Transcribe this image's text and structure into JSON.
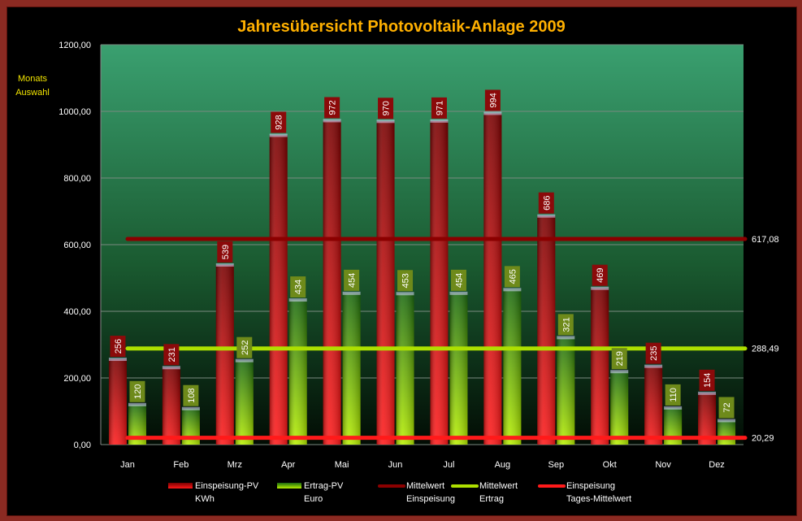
{
  "chart_data": {
    "type": "bar",
    "title": "Jahresübersicht Photovoltaik-Anlage  2009",
    "categories": [
      "Jan",
      "Feb",
      "Mrz",
      "Apr",
      "Mai",
      "Jun",
      "Jul",
      "Aug",
      "Sep",
      "Okt",
      "Nov",
      "Dez"
    ],
    "ylim": [
      0,
      1200
    ],
    "yticks": [
      "0,00",
      "200,00",
      "400,00",
      "600,00",
      "800,00",
      "1000,00",
      "1200,00"
    ],
    "grid": true,
    "legend_position": "bottom",
    "series": [
      {
        "key": "einspeisung",
        "name": "Einspeisung-PV KWh",
        "name_line1": "Einspeisung-PV",
        "name_line2": "KWh",
        "type": "bar",
        "values": [
          256,
          231,
          539,
          928,
          972,
          970,
          971,
          994,
          686,
          469,
          235,
          154
        ],
        "labels": [
          "256",
          "231",
          "539",
          "928",
          "972",
          "970",
          "971",
          "994",
          "686",
          "469",
          "235",
          "154"
        ]
      },
      {
        "key": "ertrag",
        "name": "Ertrag-PV Euro",
        "name_line1": "Ertrag-PV",
        "name_line2": "Euro",
        "type": "bar",
        "values": [
          120,
          108,
          252,
          434,
          454,
          453,
          454,
          465,
          321,
          219,
          110,
          72
        ],
        "labels": [
          "120",
          "108",
          "252",
          "434",
          "454",
          "453",
          "454",
          "465",
          "321",
          "219",
          "110",
          "72"
        ]
      },
      {
        "key": "mittel_einspeisung",
        "name": "Mittelwert Einspeisung",
        "name_line1": "Mittelwert",
        "name_line2": "Einspeisung",
        "type": "hline",
        "value": 617.08,
        "label": "617,08"
      },
      {
        "key": "mittel_ertrag",
        "name": "Mittelwert Ertrag",
        "name_line1": "Mittelwert",
        "name_line2": "Ertrag",
        "type": "hline",
        "value": 288.49,
        "label": "288,49"
      },
      {
        "key": "tages_mittel",
        "name": "Einspeisung Tages-Mittelwert",
        "name_line1": "Einspeisung",
        "name_line2": "Tages-Mittelwert",
        "type": "hline",
        "value": 20.29,
        "label": "20,29"
      }
    ],
    "colors": {
      "einspeisung_light": "#ff1a1a",
      "einspeisung_dark": "#7a0000",
      "ertrag_light": "#b8f000",
      "ertrag_dark": "#1c6a10",
      "mittel_einspeisung": "#8b0000",
      "mittel_ertrag": "#aee000",
      "tages_mittel": "#ff1a1a",
      "label_red_bg": "#8b0a0a",
      "label_green_bg": "#6e8a1a",
      "plot_top": "#3aa070",
      "plot_bottom": "#020c04",
      "title": "#ffb000"
    }
  },
  "side_panel": {
    "line1": "Monats",
    "line2": "Auswahl"
  }
}
